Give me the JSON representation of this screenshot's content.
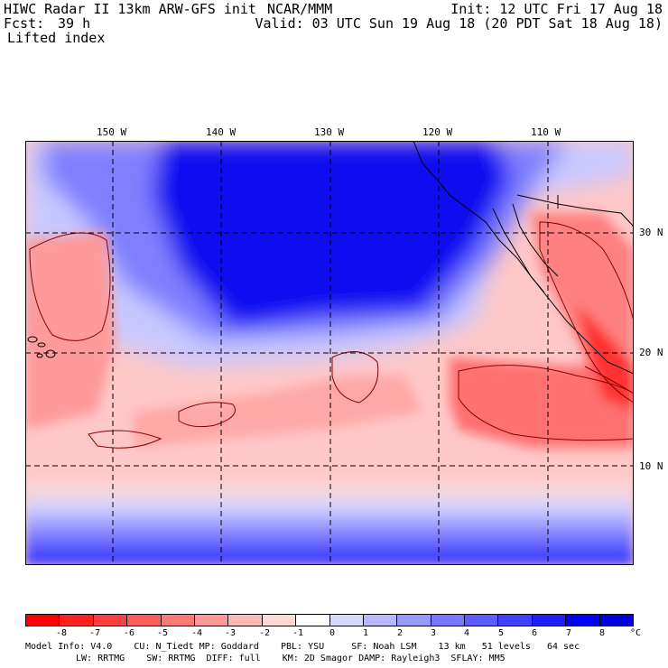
{
  "header": {
    "model_title": "HIWC Radar II 13km ARW-GFS init",
    "org": "NCAR/MMM",
    "init": "Init: 12 UTC Fri 17 Aug 18",
    "fcst_label": "Fcst:",
    "fcst_value": "39 h",
    "valid": "Valid: 03 UTC Sun 19 Aug 18 (20 PDT Sat 18 Aug 18)",
    "field": "Lifted index"
  },
  "map": {
    "lon_labels": [
      "150 W",
      "140 W",
      "130 W",
      "120 W",
      "110 W"
    ],
    "lat_labels": [
      "30 N",
      "20 N",
      "10 N"
    ]
  },
  "colorbar": {
    "unit": "°C",
    "ticks": [
      "-8",
      "-7",
      "-6",
      "-5",
      "-4",
      "-3",
      "-2",
      "-1",
      "0",
      "1",
      "2",
      "3",
      "4",
      "5",
      "6",
      "7",
      "8"
    ],
    "colors": [
      "#ff0000",
      "#ff2020",
      "#ff4040",
      "#ff5c5c",
      "#ff7878",
      "#ff9898",
      "#ffb8b8",
      "#ffd8d8",
      "#ffffff",
      "#d8d8ff",
      "#b8b8ff",
      "#9898ff",
      "#7878ff",
      "#5c5cff",
      "#4040ff",
      "#2020ff",
      "#0000ff",
      "#0000e0"
    ]
  },
  "footer": {
    "line1": "Model Info: V4.0    CU: N_Tiedt MP: Goddard    PBL: YSU     SF: Noah LSM    13 km   51 levels   64 sec",
    "line2": "LW: RRTMG    SW: RRTMG  DIFF: full    KM: 2D Smagor DAMP: Rayleigh3  SFLAY: MM5"
  }
}
